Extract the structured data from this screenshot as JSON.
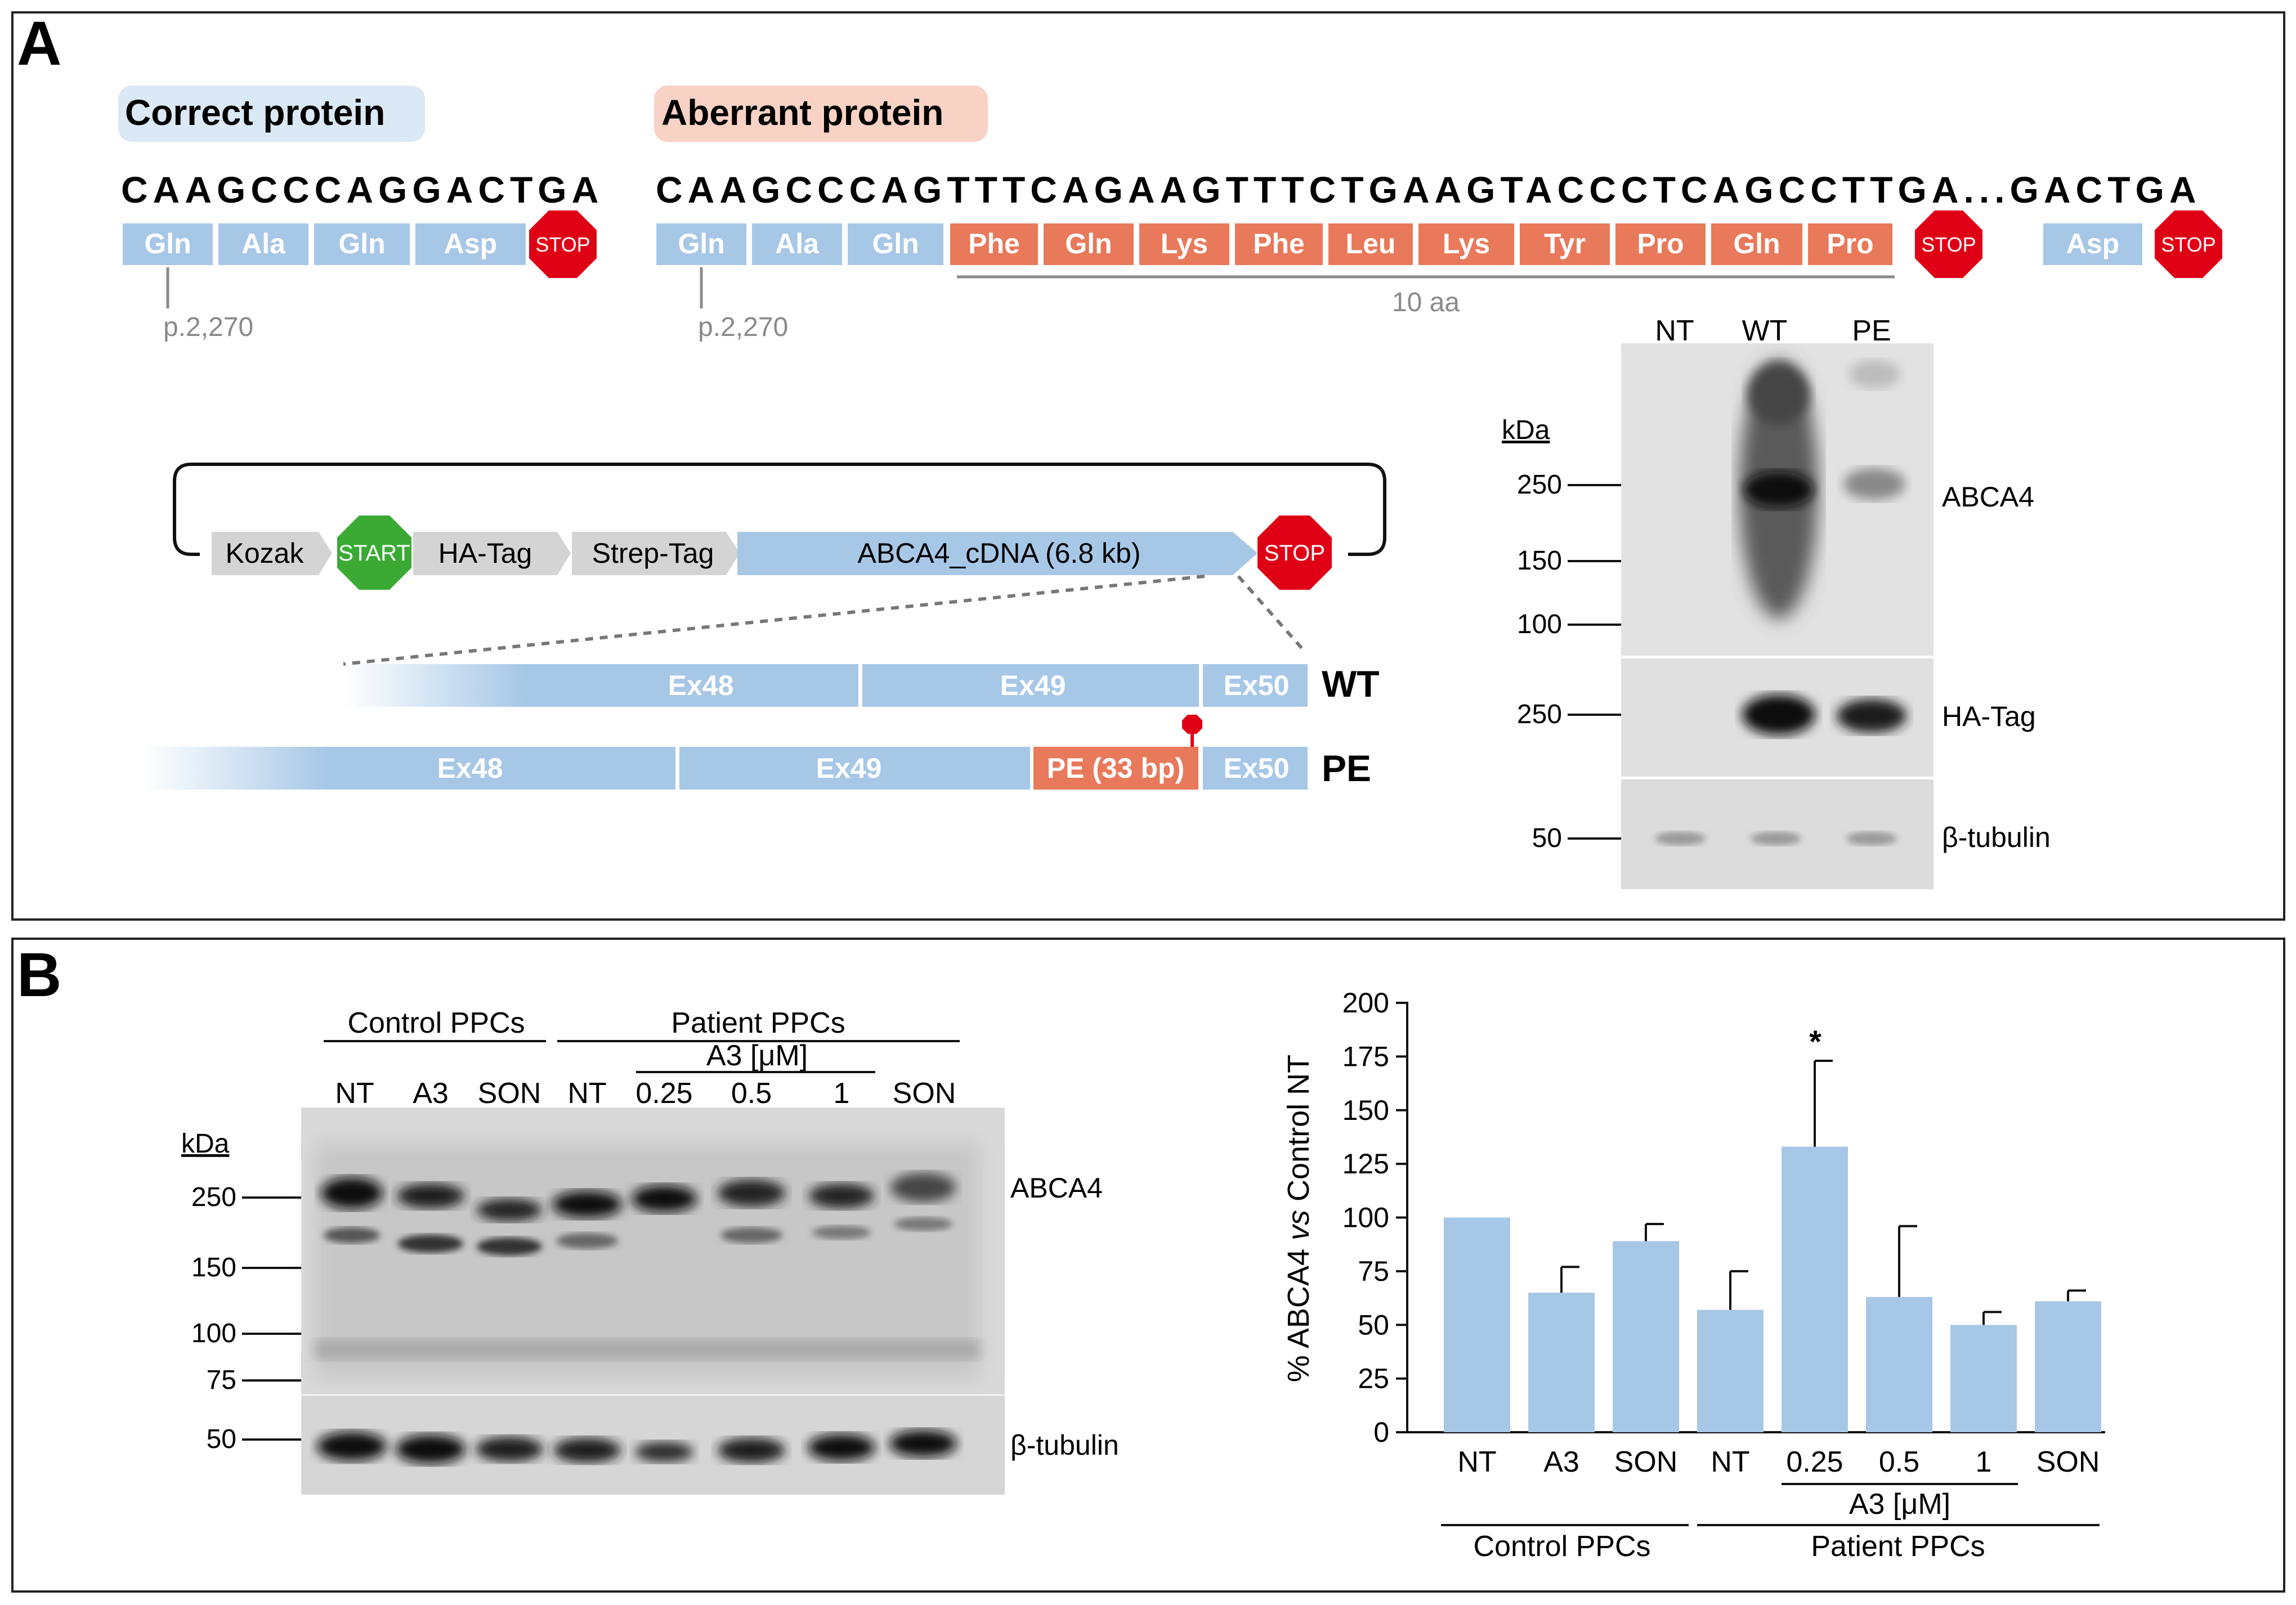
{
  "panel_a": {
    "letter": "A",
    "correct": {
      "title": "Correct protein",
      "sequence": "CAAGCCCAGGACTGA",
      "codons": [
        "Gln",
        "Ala",
        "Gln",
        "Asp"
      ],
      "stop": "STOP",
      "position": "p.2,270"
    },
    "aberrant": {
      "title": "Aberrant protein",
      "sequence": "CAAGCCCAGTTTCAGAAGTTTCTGAAGTACCCTCAGCCTTGA...GACTGA",
      "codons_normal": [
        "Gln",
        "Ala",
        "Gln"
      ],
      "codons_aberrant": [
        "Phe",
        "Gln",
        "Lys",
        "Phe",
        "Leu",
        "Lys",
        "Tyr",
        "Pro",
        "Gln",
        "Pro"
      ],
      "stop": "STOP",
      "codon_after": "Asp",
      "stop2": "STOP",
      "position": "p.2,270",
      "aa_label": "10 aa"
    },
    "construct": {
      "kozak": "Kozak",
      "start": "START",
      "ha_tag": "HA-Tag",
      "strep_tag": "Strep-Tag",
      "cdna": "ABCA4_cDNA (6.8 kb)",
      "stop": "STOP"
    },
    "exons_wt": {
      "labels": [
        "Ex48",
        "Ex49",
        "Ex50"
      ],
      "name": "WT"
    },
    "exons_pe": {
      "labels": [
        "Ex48",
        "Ex49",
        "PE (33 bp)",
        "Ex50"
      ],
      "name": "PE"
    },
    "blot": {
      "lanes": [
        "NT",
        "WT",
        "PE"
      ],
      "kda": "kDa",
      "markers_top": [
        "250",
        "150",
        "100"
      ],
      "marker_ha": "250",
      "marker_tub": "50",
      "labels": [
        "ABCA4",
        "HA-Tag",
        "β-tubulin"
      ]
    }
  },
  "panel_b": {
    "letter": "B",
    "blot": {
      "groups": [
        "Control PPCs",
        "Patient PPCs"
      ],
      "a3_label": "A3 [μM]",
      "lanes": [
        "NT",
        "A3",
        "SON",
        "NT",
        "0.25",
        "0.5",
        "1",
        "SON"
      ],
      "kda": "kDa",
      "markers": [
        "250",
        "150",
        "100",
        "75",
        "50"
      ],
      "labels": [
        "ABCA4",
        "β-tubulin"
      ]
    },
    "significance": "*"
  },
  "chart_data": {
    "type": "bar",
    "categories": [
      "NT",
      "A3",
      "SON",
      "NT",
      "0.25",
      "0.5",
      "1",
      "SON"
    ],
    "values": [
      100,
      65,
      89,
      57,
      133,
      63,
      50,
      61
    ],
    "errors": [
      0,
      12,
      8,
      18,
      40,
      33,
      6,
      5
    ],
    "ylabel_prefix": "% ABCA4 ",
    "ylabel_italic": "vs",
    "ylabel_suffix": " Control NT",
    "yticks": [
      "0",
      "25",
      "50",
      "75",
      "100",
      "125",
      "150",
      "175",
      "200"
    ],
    "ylim": [
      0,
      200
    ],
    "subgroup_label": "A3 [μM]",
    "groups": [
      "Control PPCs",
      "Patient PPCs"
    ],
    "bar_color": "#a7c7e7"
  },
  "colors": {
    "blue_box": "#a7c7e7",
    "orange_box": "#e8795a",
    "stop_red": "#e00016",
    "start_green": "#3aaa35",
    "grey_arrow": "#d4d4d4",
    "correct_bg": "#dbe8f5",
    "aberrant_bg": "#f8d2c4"
  }
}
